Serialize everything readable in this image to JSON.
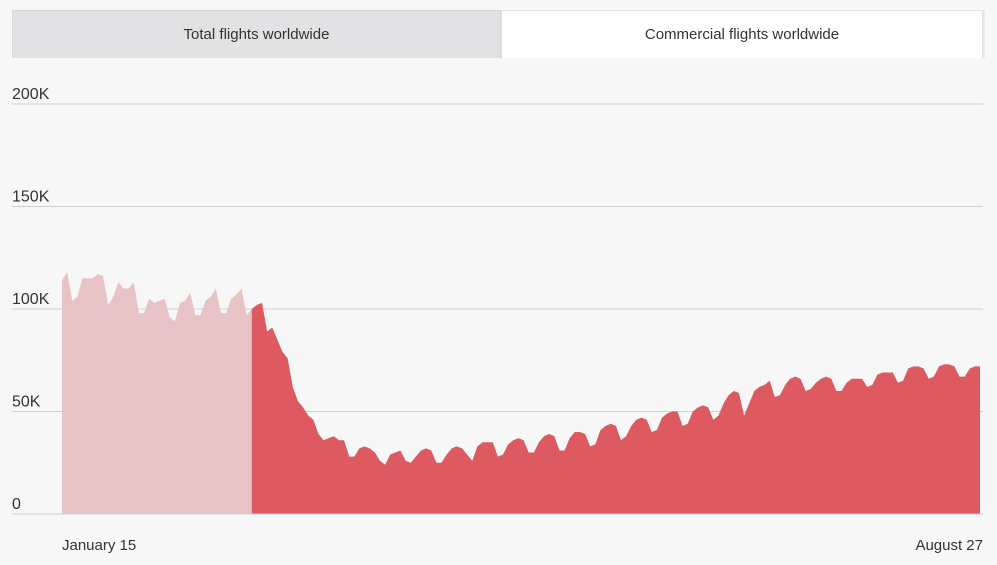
{
  "tabs": [
    {
      "label": "Total flights worldwide",
      "active": false
    },
    {
      "label": "Commercial flights worldwide",
      "active": true
    }
  ],
  "colors": {
    "highlight": "#dc5a60",
    "faded": "#e8c3c6",
    "grid": "#cfcfd2",
    "background": "#f7f7f8"
  },
  "chart_data": {
    "type": "area",
    "title": "",
    "xlabel": "",
    "ylabel": "",
    "ylim": [
      0,
      200000
    ],
    "y_ticks": [
      0,
      50000,
      100000,
      150000,
      200000
    ],
    "y_tick_labels": [
      "0",
      "50K",
      "100K",
      "150K",
      "200K"
    ],
    "x_tick_labels": [
      "January 15",
      "August 27"
    ],
    "grid": true,
    "legend": "none",
    "highlight_start_index": 37,
    "series": [
      {
        "values": [
          114000,
          118000,
          104000,
          106000,
          115000,
          115000,
          115000,
          117000,
          116000,
          102000,
          106000,
          113000,
          110000,
          110000,
          113000,
          98000,
          98000,
          105000,
          103000,
          104000,
          105000,
          96000,
          94000,
          103000,
          104000,
          108000,
          97000,
          97000,
          104000,
          106000,
          110000,
          98000,
          98000,
          105000,
          107000,
          110000,
          97000,
          100000,
          102000,
          103000,
          89000,
          91000,
          85000,
          79000,
          76000,
          62000,
          55000,
          52000,
          48000,
          46000,
          39000,
          36000,
          37000,
          38000,
          36000,
          36000,
          28000,
          28000,
          32000,
          33000,
          32000,
          30000,
          26000,
          24000,
          29000,
          30000,
          31000,
          26000,
          25000,
          28000,
          31000,
          32000,
          31000,
          25000,
          25000,
          29000,
          32000,
          33000,
          32000,
          29000,
          26000,
          33000,
          35000,
          35000,
          35000,
          28000,
          29000,
          34000,
          36000,
          37000,
          36000,
          30000,
          30000,
          35000,
          38000,
          39000,
          38000,
          31000,
          31000,
          37000,
          40000,
          40000,
          39000,
          33000,
          34000,
          41000,
          43000,
          44000,
          43000,
          36000,
          38000,
          43000,
          46000,
          47000,
          46000,
          40000,
          41000,
          47000,
          49000,
          50000,
          50000,
          43000,
          44000,
          50000,
          52000,
          53000,
          52000,
          46000,
          48000,
          54000,
          58000,
          60000,
          59000,
          48000,
          54000,
          60000,
          62000,
          63000,
          65000,
          57000,
          58000,
          63000,
          66000,
          67000,
          66000,
          60000,
          61000,
          64000,
          66000,
          67000,
          66000,
          60000,
          60000,
          64000,
          66000,
          66000,
          66000,
          62000,
          63000,
          68000,
          69000,
          69000,
          69000,
          64000,
          65000,
          71000,
          72000,
          72000,
          71000,
          66000,
          67000,
          72000,
          73000,
          73000,
          72000,
          67000,
          67000,
          71000,
          72000,
          72000
        ]
      }
    ]
  }
}
